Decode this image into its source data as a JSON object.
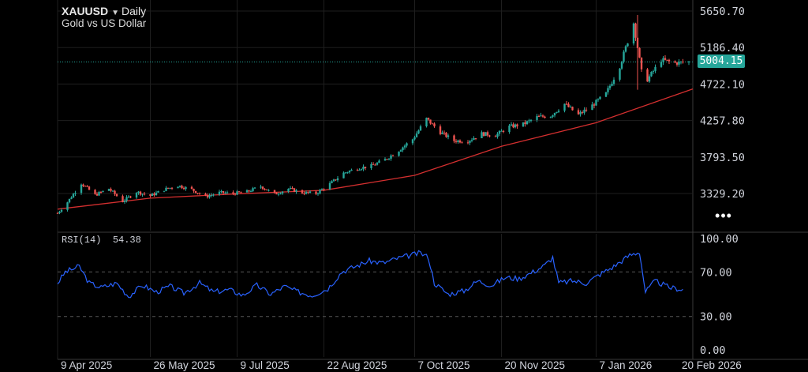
{
  "header": {
    "symbol": "XAUUSD",
    "interval": "Daily",
    "description": "Gold vs US Dollar"
  },
  "current_price": "5004.15",
  "rsi": {
    "label": "RSI(14)",
    "value": "54.38"
  },
  "more_icon": "ellipsis-icon",
  "colors": {
    "up": "#26a69a",
    "down": "#ef5350",
    "ma": "#d32f2f",
    "rsi": "#2962ff",
    "grid": "#1e1e1e",
    "price_line": "#26a69a"
  },
  "chart_data": [
    {
      "type": "candlestick",
      "title": "XAUUSD Daily",
      "ylim": [
        3050,
        5680
      ],
      "y_ticks": [
        5650.7,
        5186.4,
        4722.1,
        4257.8,
        3793.5,
        3329.2
      ],
      "x_ticks": [
        "9 Apr 2025",
        "26 May 2025",
        "9 Jul 2025",
        "22 Aug 2025",
        "7 Oct 2025",
        "20 Nov 2025",
        "7 Jan 2026",
        "20 Feb 2026"
      ],
      "x_range": [
        "2025-04-09",
        "2026-02-25"
      ],
      "close_line": [
        [
          "2025-04-09",
          3080
        ],
        [
          "2025-04-14",
          3220
        ],
        [
          "2025-04-21",
          3460
        ],
        [
          "2025-04-28",
          3310
        ],
        [
          "2025-05-05",
          3390
        ],
        [
          "2025-05-12",
          3230
        ],
        [
          "2025-05-19",
          3350
        ],
        [
          "2025-05-26",
          3300
        ],
        [
          "2025-06-02",
          3380
        ],
        [
          "2025-06-09",
          3430
        ],
        [
          "2025-06-16",
          3380
        ],
        [
          "2025-06-23",
          3290
        ],
        [
          "2025-06-30",
          3340
        ],
        [
          "2025-07-07",
          3330
        ],
        [
          "2025-07-14",
          3350
        ],
        [
          "2025-07-21",
          3420
        ],
        [
          "2025-07-28",
          3320
        ],
        [
          "2025-08-04",
          3390
        ],
        [
          "2025-08-11",
          3340
        ],
        [
          "2025-08-18",
          3330
        ],
        [
          "2025-08-25",
          3450
        ],
        [
          "2025-09-01",
          3590
        ],
        [
          "2025-09-08",
          3650
        ],
        [
          "2025-09-15",
          3680
        ],
        [
          "2025-09-22",
          3760
        ],
        [
          "2025-09-29",
          3880
        ],
        [
          "2025-10-06",
          4020
        ],
        [
          "2025-10-13",
          4280
        ],
        [
          "2025-10-20",
          4110
        ],
        [
          "2025-10-27",
          4000
        ],
        [
          "2025-11-03",
          4000
        ],
        [
          "2025-11-10",
          4090
        ],
        [
          "2025-11-17",
          4070
        ],
        [
          "2025-11-24",
          4180
        ],
        [
          "2025-12-01",
          4210
        ],
        [
          "2025-12-08",
          4300
        ],
        [
          "2025-12-15",
          4320
        ],
        [
          "2025-12-22",
          4470
        ],
        [
          "2025-12-29",
          4330
        ],
        [
          "2026-01-05",
          4450
        ],
        [
          "2026-01-12",
          4600
        ],
        [
          "2026-01-19",
          4950
        ],
        [
          "2026-01-26",
          5500
        ],
        [
          "2026-01-30",
          4880
        ],
        [
          "2026-02-02",
          4780
        ],
        [
          "2026-02-09",
          5030
        ],
        [
          "2026-02-16",
          4990
        ],
        [
          "2026-02-23",
          5004.15
        ]
      ],
      "moving_average": [
        [
          "2025-04-09",
          3130
        ],
        [
          "2025-05-26",
          3270
        ],
        [
          "2025-07-09",
          3325
        ],
        [
          "2025-08-22",
          3370
        ],
        [
          "2025-10-07",
          3560
        ],
        [
          "2025-11-20",
          3930
        ],
        [
          "2026-01-07",
          4230
        ],
        [
          "2026-02-25",
          4660
        ]
      ]
    },
    {
      "type": "line",
      "name": "RSI(14)",
      "ylim": [
        0,
        100
      ],
      "y_ticks": [
        100.0,
        70.0,
        30.0,
        0.0
      ],
      "levels": [
        70,
        30
      ],
      "series": [
        [
          "2025-04-09",
          60
        ],
        [
          "2025-04-13",
          70
        ],
        [
          "2025-04-20",
          75
        ],
        [
          "2025-04-25",
          60
        ],
        [
          "2025-05-01",
          56
        ],
        [
          "2025-05-09",
          60
        ],
        [
          "2025-05-15",
          48
        ],
        [
          "2025-05-22",
          58
        ],
        [
          "2025-05-29",
          52
        ],
        [
          "2025-06-05",
          57
        ],
        [
          "2025-06-12",
          51
        ],
        [
          "2025-06-20",
          60
        ],
        [
          "2025-06-27",
          52
        ],
        [
          "2025-07-05",
          54
        ],
        [
          "2025-07-12",
          49
        ],
        [
          "2025-07-19",
          58
        ],
        [
          "2025-07-26",
          50
        ],
        [
          "2025-08-02",
          57
        ],
        [
          "2025-08-09",
          52
        ],
        [
          "2025-08-16",
          49
        ],
        [
          "2025-08-24",
          55
        ],
        [
          "2025-08-31",
          70
        ],
        [
          "2025-09-07",
          75
        ],
        [
          "2025-09-14",
          80
        ],
        [
          "2025-09-21",
          78
        ],
        [
          "2025-09-28",
          82
        ],
        [
          "2025-10-05",
          85
        ],
        [
          "2025-10-10",
          87
        ],
        [
          "2025-10-14",
          83
        ],
        [
          "2025-10-17",
          60
        ],
        [
          "2025-10-24",
          50
        ],
        [
          "2025-11-01",
          53
        ],
        [
          "2025-11-08",
          62
        ],
        [
          "2025-11-15",
          58
        ],
        [
          "2025-11-22",
          65
        ],
        [
          "2025-11-29",
          64
        ],
        [
          "2025-12-06",
          70
        ],
        [
          "2025-12-12",
          76
        ],
        [
          "2025-12-16",
          83
        ],
        [
          "2025-12-19",
          60
        ],
        [
          "2025-12-26",
          62
        ],
        [
          "2026-01-02",
          60
        ],
        [
          "2026-01-09",
          68
        ],
        [
          "2026-01-16",
          75
        ],
        [
          "2026-01-24",
          85
        ],
        [
          "2026-01-29",
          88
        ],
        [
          "2026-02-01",
          52
        ],
        [
          "2026-02-06",
          62
        ],
        [
          "2026-02-13",
          56
        ],
        [
          "2026-02-20",
          54.38
        ]
      ]
    }
  ]
}
